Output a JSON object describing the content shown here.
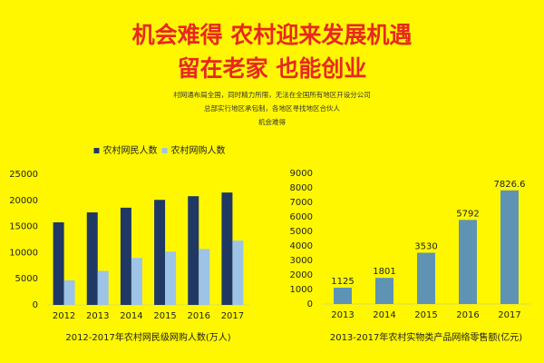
{
  "header": {
    "title_lines": [
      "机会难得  农村迎来发展机遇",
      "留在老家   也能创业"
    ],
    "subtitle_lines": [
      "村网通布局全国，同时精力所限，无法在全国所有地区开设分公司",
      "总部实行地区承包制，各地区寻找地区合伙人",
      "机会难得"
    ]
  },
  "chart_data": [
    {
      "type": "bar",
      "caption": "2012-2017年农村网民级网购人数(万人)",
      "categories": [
        "2012",
        "2013",
        "2014",
        "2015",
        "2016",
        "2017"
      ],
      "series": [
        {
          "name": "农村网民人数",
          "color": "#1f3864",
          "values": [
            15800,
            17700,
            18600,
            20100,
            20800,
            21500
          ]
        },
        {
          "name": "农村网购人数",
          "color": "#9dc3e6",
          "values": [
            4700,
            6500,
            9000,
            10200,
            10700,
            12300
          ]
        }
      ],
      "ylim": [
        0,
        25000
      ],
      "yticks": [
        0,
        5000,
        10000,
        15000,
        20000,
        25000
      ],
      "legend": "top"
    },
    {
      "type": "bar",
      "caption": "2013-2017年农村实物类产品网络零售额(亿元)",
      "categories": [
        "2013",
        "2014",
        "2015",
        "2016",
        "2017"
      ],
      "values": [
        1125,
        1801,
        3530,
        5792,
        7826.6
      ],
      "color": "#5f93b3",
      "ylim": [
        0,
        9000
      ],
      "yticks": [
        0,
        1000,
        2000,
        3000,
        4000,
        5000,
        6000,
        7000,
        8000,
        9000
      ]
    }
  ]
}
